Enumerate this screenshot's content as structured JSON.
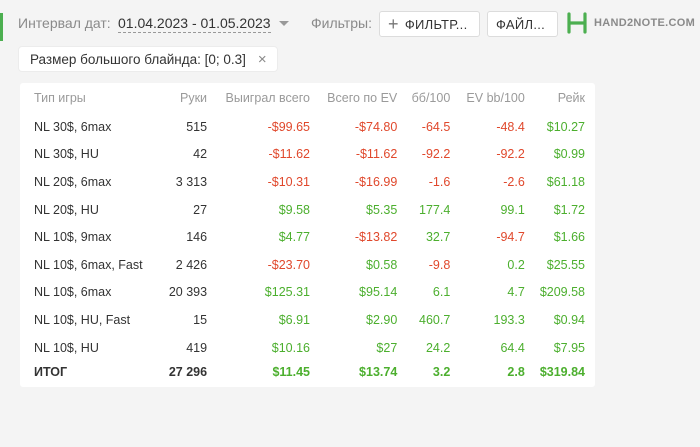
{
  "toolbar": {
    "interval_label": "Интервал дат:",
    "interval_value": "01.04.2023 - 01.05.2023",
    "filters_label": "Фильтры:",
    "filter_button": "ФИЛЬТР...",
    "file_button": "ФАЙЛ...",
    "logo_text": "HAND2NOTE.COM"
  },
  "chip": {
    "label": "Размер большого блайнда: [0; 0.3]",
    "close": "×"
  },
  "colors": {
    "negative": "#e0482c",
    "positive": "#4caf2e",
    "brand": "#4caf50"
  },
  "table": {
    "headers": [
      "Тип игры",
      "Руки",
      "Выиграл всего",
      "Всего по EV",
      "бб/100",
      "EV bb/100",
      "Рейк"
    ],
    "rows": [
      [
        "NL 30$, 6max",
        "515",
        "-$99.65",
        "-$74.80",
        "-64.5",
        "-48.4",
        "$10.27"
      ],
      [
        "NL 30$, HU",
        "42",
        "-$11.62",
        "-$11.62",
        "-92.2",
        "-92.2",
        "$0.99"
      ],
      [
        "NL 20$, 6max",
        "3 313",
        "-$10.31",
        "-$16.99",
        "-1.6",
        "-2.6",
        "$61.18"
      ],
      [
        "NL 20$, HU",
        "27",
        "$9.58",
        "$5.35",
        "177.4",
        "99.1",
        "$1.72"
      ],
      [
        "NL 10$, 9max",
        "146",
        "$4.77",
        "-$13.82",
        "32.7",
        "-94.7",
        "$1.66"
      ],
      [
        "NL 10$, 6max, Fast",
        "2 426",
        "-$23.70",
        "$0.58",
        "-9.8",
        "0.2",
        "$25.55"
      ],
      [
        "NL 10$, 6max",
        "20 393",
        "$125.31",
        "$95.14",
        "6.1",
        "4.7",
        "$209.58"
      ],
      [
        "NL 10$, HU, Fast",
        "15",
        "$6.91",
        "$2.90",
        "460.7",
        "193.3",
        "$0.94"
      ],
      [
        "NL 10$, HU",
        "419",
        "$10.16",
        "$27",
        "24.2",
        "64.4",
        "$7.95"
      ]
    ],
    "total": [
      "ИТОГ",
      "27 296",
      "$11.45",
      "$13.74",
      "3.2",
      "2.8",
      "$319.84"
    ]
  }
}
